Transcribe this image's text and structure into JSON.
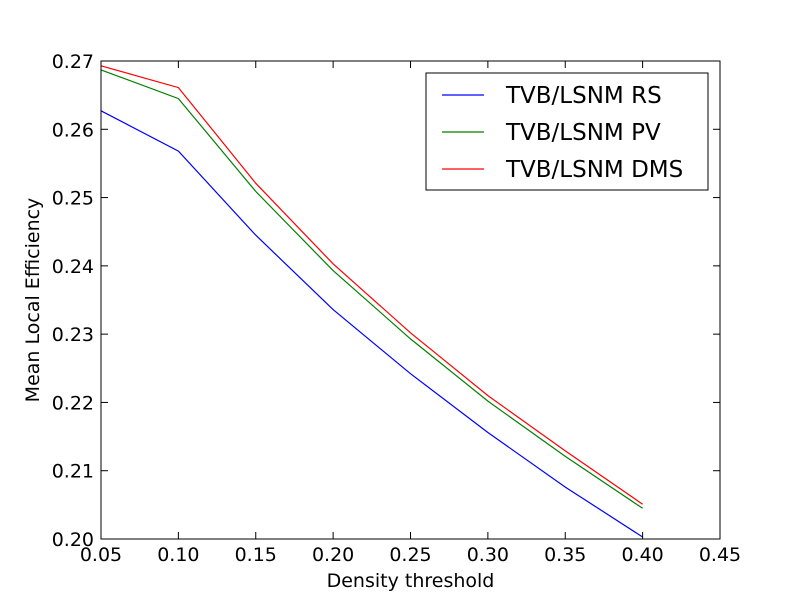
{
  "chart_data": {
    "type": "line",
    "title": "",
    "xlabel": "Density threshold",
    "ylabel": "Mean Local Efficiency",
    "xlim": [
      0.05,
      0.45
    ],
    "ylim": [
      0.2,
      0.27
    ],
    "xticks": [
      "0.05",
      "0.10",
      "0.15",
      "0.20",
      "0.25",
      "0.30",
      "0.35",
      "0.40",
      "0.45"
    ],
    "yticks": [
      "0.20",
      "0.21",
      "0.22",
      "0.23",
      "0.24",
      "0.25",
      "0.26",
      "0.27"
    ],
    "grid": false,
    "legend_position": "top-right",
    "x": [
      0.05,
      0.1,
      0.15,
      0.2,
      0.25,
      0.3,
      0.35,
      0.4
    ],
    "series": [
      {
        "name": "TVB/LSNM RS",
        "color": "#0000ff",
        "values": [
          0.2627,
          0.2568,
          0.2445,
          0.2336,
          0.2242,
          0.2156,
          0.2076,
          0.2003
        ]
      },
      {
        "name": "TVB/LSNM PV",
        "color": "#008000",
        "values": [
          0.2687,
          0.2645,
          0.2509,
          0.2393,
          0.2293,
          0.2202,
          0.2121,
          0.2045
        ]
      },
      {
        "name": "TVB/LSNM DMS",
        "color": "#ff0000",
        "values": [
          0.2693,
          0.2661,
          0.2521,
          0.2403,
          0.2302,
          0.221,
          0.2129,
          0.2051
        ]
      }
    ]
  }
}
